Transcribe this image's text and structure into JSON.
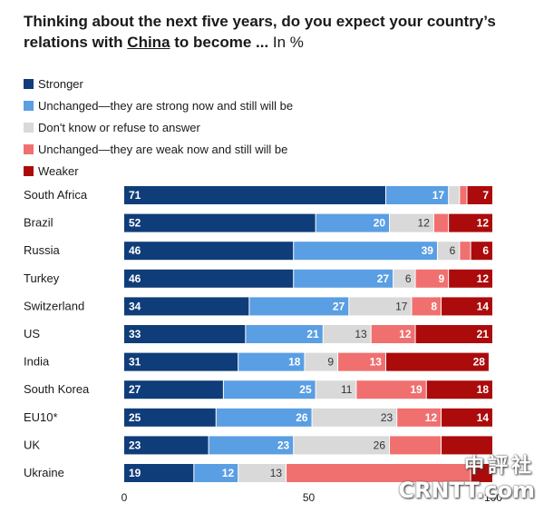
{
  "title": {
    "part1": "Thinking about the next five years, do you expect your country’s relations with ",
    "underlined": "China",
    "part2": " to become ...",
    "unit": "In %"
  },
  "watermark": {
    "line1": "中評社",
    "line2": "CRNTT.com"
  },
  "colors": {
    "stronger": "#0f3d7a",
    "unchanged_strong": "#5a9ee3",
    "dont_know": "#d9d9d9",
    "unchanged_weak": "#f07070",
    "weaker": "#ac0b0b"
  },
  "chart_data": {
    "type": "bar",
    "orientation": "horizontal",
    "stacked": true,
    "title": "Thinking about the next five years, do you expect your country’s relations with China to become ... In %",
    "xlim": [
      0,
      100
    ],
    "xticks": [
      0,
      50,
      100
    ],
    "categories": [
      "South Africa",
      "Brazil",
      "Russia",
      "Turkey",
      "Switzerland",
      "US",
      "India",
      "South Korea",
      "EU10*",
      "UK",
      "Ukraine"
    ],
    "series": [
      {
        "name": "Stronger",
        "key": "stronger",
        "values": [
          71,
          52,
          46,
          46,
          34,
          33,
          31,
          27,
          25,
          23,
          19
        ],
        "labels": [
          "71",
          "52",
          "46",
          "46",
          "34",
          "33",
          "31",
          "27",
          "25",
          "23",
          "19"
        ]
      },
      {
        "name": "Unchanged—they are strong now and still will be",
        "key": "unchanged_strong",
        "values": [
          17,
          20,
          39,
          27,
          27,
          21,
          18,
          25,
          26,
          23,
          12
        ],
        "labels": [
          "17",
          "20",
          "39",
          "27",
          "27",
          "21",
          "18",
          "25",
          "26",
          "23",
          "12"
        ]
      },
      {
        "name": "Don't know or refuse to answer",
        "key": "dont_know",
        "values": [
          3,
          12,
          6,
          6,
          17,
          13,
          9,
          11,
          23,
          26,
          13
        ],
        "labels": [
          "",
          "12",
          "6",
          "6",
          "17",
          "13",
          "9",
          "11",
          "23",
          "26",
          "13"
        ]
      },
      {
        "name": "Unchanged—they are weak now and still will be",
        "key": "unchanged_weak",
        "values": [
          2,
          4,
          3,
          9,
          8,
          12,
          13,
          19,
          12,
          14,
          50
        ],
        "labels": [
          "",
          "",
          "",
          "9",
          "8",
          "12",
          "13",
          "19",
          "12",
          "",
          ""
        ]
      },
      {
        "name": "Weaker",
        "key": "weaker",
        "values": [
          7,
          12,
          6,
          12,
          14,
          21,
          28,
          18,
          14,
          14,
          6
        ],
        "labels": [
          "7",
          "12",
          "6",
          "12",
          "14",
          "21",
          "28",
          "18",
          "14",
          "",
          ""
        ]
      }
    ]
  }
}
